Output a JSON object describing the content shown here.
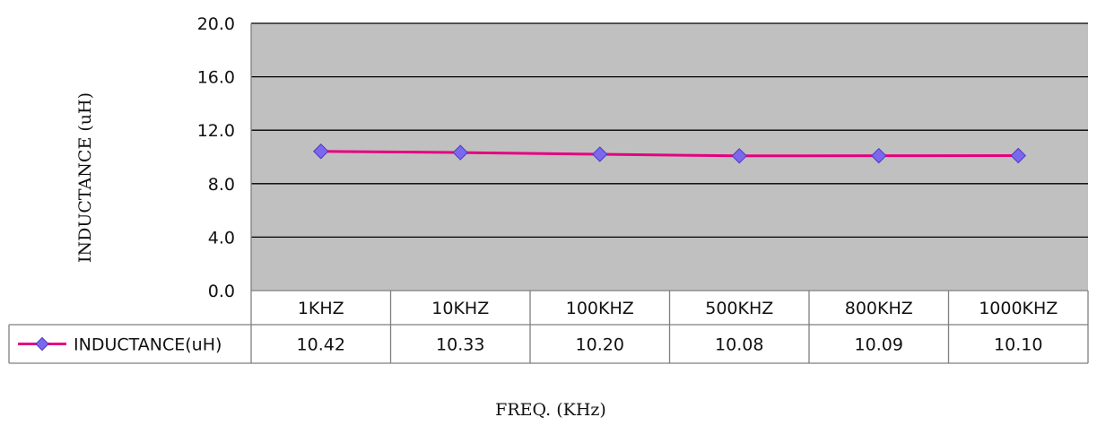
{
  "chart_data": {
    "type": "line",
    "title": "",
    "xlabel": "FREQ. (KHz)",
    "ylabel": "INDUCTANCE (uH)",
    "categories": [
      "1KHZ",
      "10KHZ",
      "100KHZ",
      "500KHZ",
      "800KHZ",
      "1000KHZ"
    ],
    "series": [
      {
        "name": "INDUCTANCE(uH)",
        "values": [
          10.42,
          10.33,
          10.2,
          10.08,
          10.09,
          10.1
        ],
        "value_labels": [
          "10.42",
          "10.33",
          "10.20",
          "10.08",
          "10.09",
          "10.10"
        ],
        "line_color": "#e6007e",
        "marker_color": "#7b68ee",
        "marker": "diamond"
      }
    ],
    "yticks": [
      0,
      4,
      8,
      12,
      16,
      20
    ],
    "ytick_labels": [
      "0.0",
      "4.0",
      "8.0",
      "12.0",
      "16.0",
      "20.0"
    ],
    "ylim": [
      0,
      20
    ],
    "grid": true,
    "plot_background": "#c0c0c0",
    "legend": "data-table-left"
  }
}
